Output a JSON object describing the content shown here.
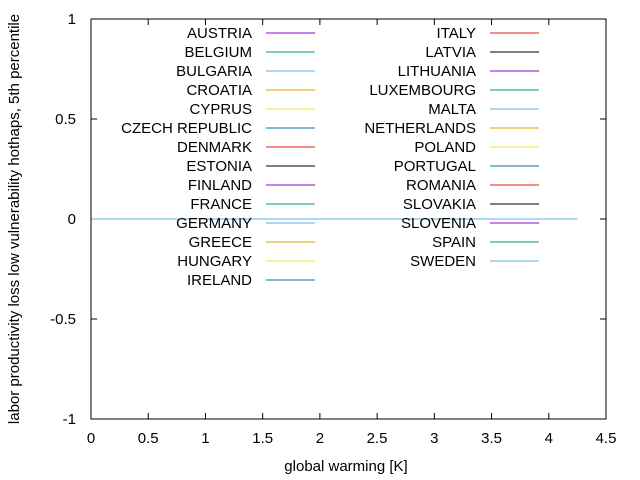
{
  "chart_data": {
    "type": "line",
    "title": "",
    "xlabel": "global warming [K]",
    "ylabel": "labor productivity loss low vulnerability hothaps, 5th percentile",
    "xlim": [
      0,
      4.5
    ],
    "ylim": [
      -1,
      1
    ],
    "xticks": [
      "0",
      "0.5",
      "1",
      "1.5",
      "2",
      "2.5",
      "3",
      "3.5",
      "4",
      "4.5"
    ],
    "yticks": [
      "1",
      "0.5",
      "0",
      "-0.5",
      "-1"
    ],
    "grid": false,
    "legend_position": "top, two columns",
    "series": [
      {
        "name": "AUSTRIA",
        "color": "#9400d3",
        "x": [
          0,
          4.25
        ],
        "y": [
          0,
          0
        ]
      },
      {
        "name": "BELGIUM",
        "color": "#009e73",
        "x": [
          0,
          4.25
        ],
        "y": [
          0,
          0
        ]
      },
      {
        "name": "BULGARIA",
        "color": "#56b4e9",
        "x": [
          0,
          4.25
        ],
        "y": [
          0,
          0
        ]
      },
      {
        "name": "CROATIA",
        "color": "#e69f00",
        "x": [
          0,
          4.25
        ],
        "y": [
          0,
          0
        ]
      },
      {
        "name": "CYPRUS",
        "color": "#f0e442",
        "x": [
          0,
          4.25
        ],
        "y": [
          0,
          0
        ]
      },
      {
        "name": "CZECH REPUBLIC",
        "color": "#0072b2",
        "x": [
          0,
          4.25
        ],
        "y": [
          0,
          0
        ]
      },
      {
        "name": "DENMARK",
        "color": "#e51e10",
        "x": [
          0,
          4.25
        ],
        "y": [
          0,
          0
        ]
      },
      {
        "name": "ESTONIA",
        "color": "#000000",
        "x": [
          0,
          4.25
        ],
        "y": [
          0,
          0
        ]
      },
      {
        "name": "FINLAND",
        "color": "#9400d3",
        "x": [
          0,
          4.25
        ],
        "y": [
          0,
          0
        ]
      },
      {
        "name": "FRANCE",
        "color": "#009e73",
        "x": [
          0,
          4.25
        ],
        "y": [
          0,
          0
        ]
      },
      {
        "name": "GERMANY",
        "color": "#56b4e9",
        "x": [
          0,
          4.25
        ],
        "y": [
          0,
          0
        ]
      },
      {
        "name": "GREECE",
        "color": "#e69f00",
        "x": [
          0,
          4.25
        ],
        "y": [
          0,
          0
        ]
      },
      {
        "name": "HUNGARY",
        "color": "#f0e442",
        "x": [
          0,
          4.25
        ],
        "y": [
          0,
          0
        ]
      },
      {
        "name": "IRELAND",
        "color": "#0072b2",
        "x": [
          0,
          4.25
        ],
        "y": [
          0,
          0
        ]
      },
      {
        "name": "ITALY",
        "color": "#e51e10",
        "x": [
          0,
          4.25
        ],
        "y": [
          0,
          0
        ]
      },
      {
        "name": "LATVIA",
        "color": "#000000",
        "x": [
          0,
          4.25
        ],
        "y": [
          0,
          0
        ]
      },
      {
        "name": "LITHUANIA",
        "color": "#9400d3",
        "x": [
          0,
          4.25
        ],
        "y": [
          0,
          0
        ]
      },
      {
        "name": "LUXEMBOURG",
        "color": "#009e73",
        "x": [
          0,
          4.25
        ],
        "y": [
          0,
          0
        ]
      },
      {
        "name": "MALTA",
        "color": "#56b4e9",
        "x": [
          0,
          4.25
        ],
        "y": [
          0,
          0
        ]
      },
      {
        "name": "NETHERLANDS",
        "color": "#e69f00",
        "x": [
          0,
          4.25
        ],
        "y": [
          0,
          0
        ]
      },
      {
        "name": "POLAND",
        "color": "#f0e442",
        "x": [
          0,
          4.25
        ],
        "y": [
          0,
          0
        ]
      },
      {
        "name": "PORTUGAL",
        "color": "#0072b2",
        "x": [
          0,
          4.25
        ],
        "y": [
          0,
          0
        ]
      },
      {
        "name": "ROMANIA",
        "color": "#e51e10",
        "x": [
          0,
          4.25
        ],
        "y": [
          0,
          0
        ]
      },
      {
        "name": "SLOVAKIA",
        "color": "#000000",
        "x": [
          0,
          4.25
        ],
        "y": [
          0,
          0
        ]
      },
      {
        "name": "SLOVENIA",
        "color": "#9400d3",
        "x": [
          0,
          4.25
        ],
        "y": [
          0,
          0
        ]
      },
      {
        "name": "SPAIN",
        "color": "#009e73",
        "x": [
          0,
          4.25
        ],
        "y": [
          0,
          0
        ]
      },
      {
        "name": "SWEDEN",
        "color": "#56b4e9",
        "x": [
          0,
          4.25
        ],
        "y": [
          0,
          0
        ]
      }
    ]
  }
}
